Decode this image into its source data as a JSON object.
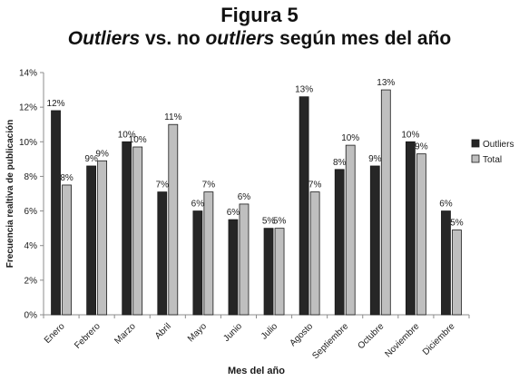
{
  "figure_label": "Figura 5",
  "title_parts": [
    {
      "text": "Outliers",
      "italic": true
    },
    {
      "text": " vs. no ",
      "italic": false
    },
    {
      "text": "outliers",
      "italic": true
    },
    {
      "text": " según mes del año",
      "italic": false
    }
  ],
  "colors": {
    "outliers": "#262626",
    "total": "#bfbfbf",
    "bar_stroke": "#1a1a1a",
    "axis": "#8c8c8c",
    "text": "#1a1a1a"
  },
  "chart_data": {
    "type": "bar",
    "title": "Outliers vs. no outliers según mes del año",
    "xlabel": "Mes del año",
    "ylabel": "Frecuencia realtiva de publicación",
    "ylim": [
      0,
      14
    ],
    "yticks": [
      0,
      2,
      4,
      6,
      8,
      10,
      12,
      14
    ],
    "ytick_labels": [
      "0%",
      "2%",
      "4%",
      "6%",
      "8%",
      "10%",
      "12%",
      "14%"
    ],
    "grid": false,
    "legend_position": "right",
    "categories": [
      "Enero",
      "Febrero",
      "Marzo",
      "Abril",
      "Mayo",
      "Junio",
      "Julio",
      "Agosto",
      "Septiembre",
      "Octubre",
      "Noviembre",
      "Diciembre"
    ],
    "series": [
      {
        "name": "Outliers",
        "values": [
          11.8,
          8.6,
          10.0,
          7.1,
          6.0,
          5.5,
          5.0,
          12.6,
          8.4,
          8.6,
          10.0,
          6.0
        ],
        "labels": [
          "12%",
          "9%",
          "10%",
          "7%",
          "6%",
          "6%",
          "5%",
          "13%",
          "8%",
          "9%",
          "10%",
          "6%"
        ]
      },
      {
        "name": "Total",
        "values": [
          7.5,
          8.9,
          9.7,
          11.0,
          7.1,
          6.4,
          5.0,
          7.1,
          9.8,
          13.0,
          9.3,
          4.9
        ],
        "labels": [
          "8%",
          "9%",
          "10%",
          "11%",
          "7%",
          "6%",
          "5%",
          "7%",
          "10%",
          "13%",
          "9%",
          "5%"
        ]
      }
    ]
  }
}
